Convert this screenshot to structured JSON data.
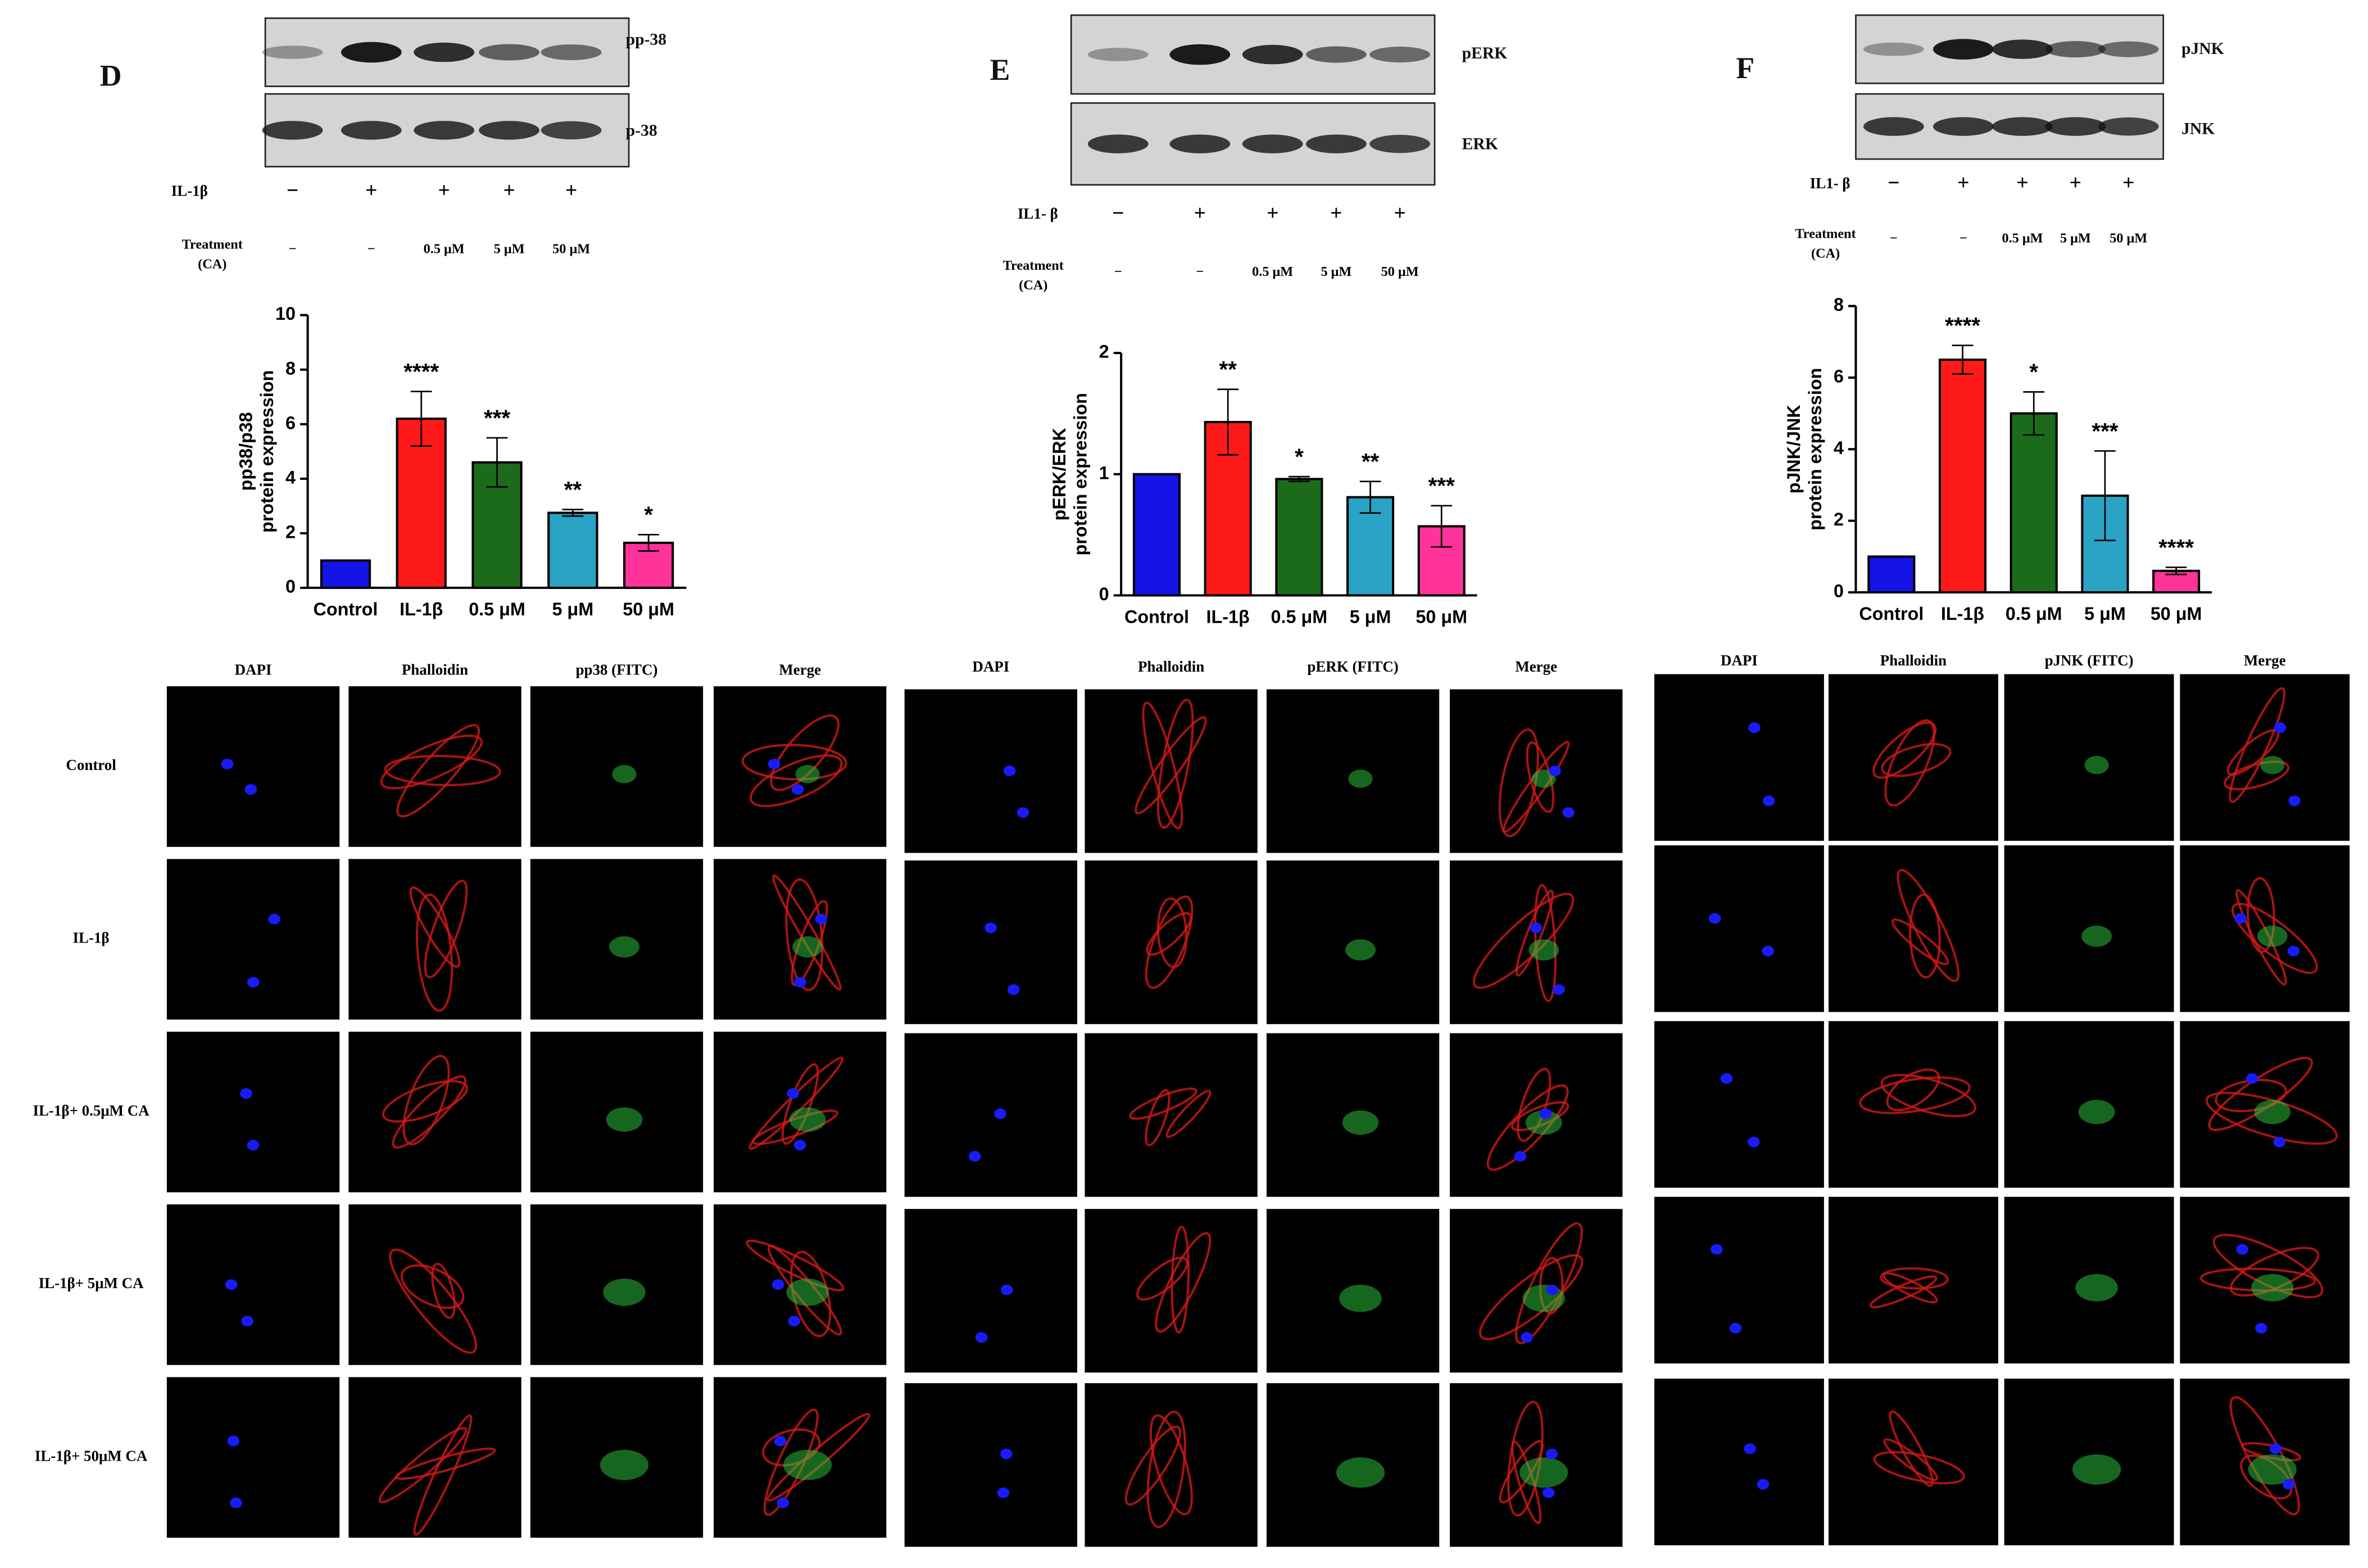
{
  "panels": [
    {
      "letter": "D",
      "blots": [
        "pp-38",
        "p-38"
      ],
      "row1_label": "IL-1β",
      "row1": [
        "−",
        "+",
        "+",
        "+",
        "+"
      ],
      "row2_label": [
        "Treatment",
        "(CA)"
      ],
      "row2": [
        "−",
        "−",
        "0.5 μM",
        "5 μM",
        "50 μM"
      ],
      "micro_columns": [
        "DAPI",
        "Phalloidin",
        "pp38 (FITC)",
        "Merge"
      ],
      "micro_rows": [
        "Control",
        "IL-1β",
        "IL-1β+ 0.5μM CA",
        "IL-1β+ 5μM CA",
        "IL-1β+ 50μM CA"
      ]
    },
    {
      "letter": "E",
      "blots": [
        "pERK",
        "ERK"
      ],
      "row1_label": "IL1- β",
      "row1": [
        "−",
        "+",
        "+",
        "+",
        "+"
      ],
      "row2_label": [
        "Treatment",
        "(CA)"
      ],
      "row2": [
        "−",
        "−",
        "0.5 μM",
        "5 μM",
        "50 μM"
      ],
      "micro_columns": [
        "DAPI",
        "Phalloidin",
        "pERK (FITC)",
        "Merge"
      ]
    },
    {
      "letter": "F",
      "blots": [
        "pJNK",
        "JNK"
      ],
      "row1_label": "IL1- β",
      "row1": [
        "−",
        "+",
        "+",
        "+",
        "+"
      ],
      "row2_label": [
        "Treatment",
        "(CA)"
      ],
      "row2": [
        "−",
        "−",
        "0.5 μM",
        "5 μM",
        "50 μM"
      ],
      "micro_columns": [
        "DAPI",
        "Phalloidin",
        "pJNK (FITC)",
        "Merge"
      ]
    }
  ],
  "chart_data": [
    {
      "type": "bar",
      "ylabel": [
        "pp38/p38",
        "protein expression"
      ],
      "categories": [
        "Control",
        "IL-1β",
        "0.5 μM",
        "5 μM",
        "50 μM"
      ],
      "values": [
        1,
        6.2,
        4.6,
        2.75,
        1.65
      ],
      "errors": [
        0,
        1.0,
        0.9,
        0.12,
        0.3
      ],
      "significance": [
        null,
        "****",
        "***",
        "**",
        "*"
      ],
      "colors": [
        "#1414e6",
        "#ff1a1a",
        "#1b6b1b",
        "#2aa3c4",
        "#ff3399"
      ],
      "ylim": [
        0,
        10
      ],
      "yticks": [
        0,
        2,
        4,
        6,
        8,
        10
      ]
    },
    {
      "type": "bar",
      "ylabel": [
        "pERK/ERK",
        "protein expression"
      ],
      "categories": [
        "Control",
        "IL-1β",
        "0.5 μM",
        "5 μM",
        "50 μM"
      ],
      "values": [
        1,
        1.43,
        0.96,
        0.81,
        0.57
      ],
      "errors": [
        0,
        0.27,
        0.02,
        0.13,
        0.17
      ],
      "significance": [
        null,
        "**",
        "*",
        "**",
        "***"
      ],
      "colors": [
        "#1414e6",
        "#ff1a1a",
        "#1b6b1b",
        "#2aa3c4",
        "#ff3399"
      ],
      "ylim": [
        0,
        2
      ],
      "yticks": [
        0,
        1,
        2
      ]
    },
    {
      "type": "bar",
      "ylabel": [
        "pJNK/JNK",
        "protein expression"
      ],
      "categories": [
        "Control",
        "IL-1β",
        "0.5 μM",
        "5 μM",
        "50 μM"
      ],
      "values": [
        1,
        6.5,
        5.0,
        2.7,
        0.6
      ],
      "errors": [
        0,
        0.4,
        0.6,
        1.25,
        0.1
      ],
      "significance": [
        null,
        "****",
        "*",
        "***",
        "****"
      ],
      "colors": [
        "#1414e6",
        "#ff1a1a",
        "#1b6b1b",
        "#2aa3c4",
        "#ff3399"
      ],
      "ylim": [
        0,
        8
      ],
      "yticks": [
        0,
        2,
        4,
        6,
        8
      ]
    }
  ]
}
